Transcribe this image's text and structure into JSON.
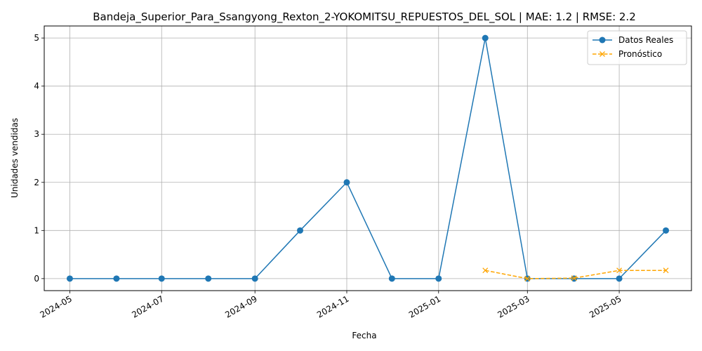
{
  "chart_data": {
    "type": "line",
    "title": "Bandeja_Superior_Para_Ssangyong_Rexton_2-YOKOMITSU_REPUESTOS_DEL_SOL | MAE: 1.2 | RMSE: 2.2",
    "xlabel": "Fecha",
    "ylabel": "Unidades vendidas",
    "x_ticks": [
      "2024-05",
      "2024-07",
      "2024-09",
      "2024-11",
      "2025-01",
      "2025-03",
      "2025-05"
    ],
    "y_ticks": [
      0,
      1,
      2,
      3,
      4,
      5
    ],
    "ylim": [
      -0.25,
      5.25
    ],
    "xlim": [
      "2024-04-14",
      "2025-06-18"
    ],
    "grid": true,
    "legend_position": "top-right",
    "series": [
      {
        "name": "Datos Reales",
        "color": "#1f77b4",
        "marker": "circle",
        "line_style": "solid",
        "points": [
          {
            "x": "2024-05-01",
            "y": 0
          },
          {
            "x": "2024-06-01",
            "y": 0
          },
          {
            "x": "2024-07-01",
            "y": 0
          },
          {
            "x": "2024-08-01",
            "y": 0
          },
          {
            "x": "2024-09-01",
            "y": 0
          },
          {
            "x": "2024-10-01",
            "y": 1
          },
          {
            "x": "2024-11-01",
            "y": 2
          },
          {
            "x": "2024-12-01",
            "y": 0
          },
          {
            "x": "2025-01-01",
            "y": 0
          },
          {
            "x": "2025-02-01",
            "y": 5
          },
          {
            "x": "2025-03-01",
            "y": 0
          },
          {
            "x": "2025-04-01",
            "y": 0
          },
          {
            "x": "2025-05-01",
            "y": 0
          },
          {
            "x": "2025-06-01",
            "y": 1
          }
        ]
      },
      {
        "name": "Pronóstico",
        "color": "#ffa500",
        "marker": "x",
        "line_style": "dashed",
        "points": [
          {
            "x": "2025-02-01",
            "y": 0.17
          },
          {
            "x": "2025-03-01",
            "y": 0.0
          },
          {
            "x": "2025-04-01",
            "y": 0.01
          },
          {
            "x": "2025-05-01",
            "y": 0.17
          },
          {
            "x": "2025-06-01",
            "y": 0.17
          }
        ]
      }
    ]
  }
}
